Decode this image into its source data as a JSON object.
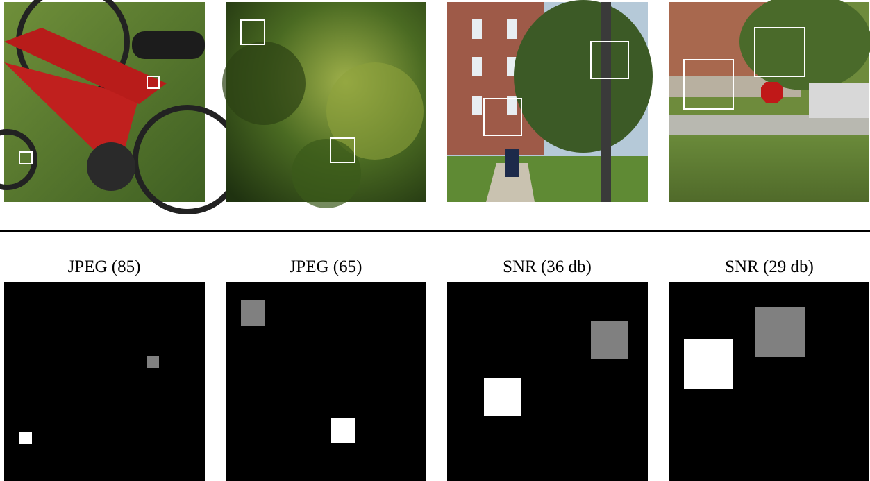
{
  "figure": {
    "panels": [
      {
        "caption": "JPEG (85)"
      },
      {
        "caption": "JPEG (65)"
      },
      {
        "caption": "SNR (36 db)"
      },
      {
        "caption": "SNR (29 db)"
      }
    ]
  }
}
